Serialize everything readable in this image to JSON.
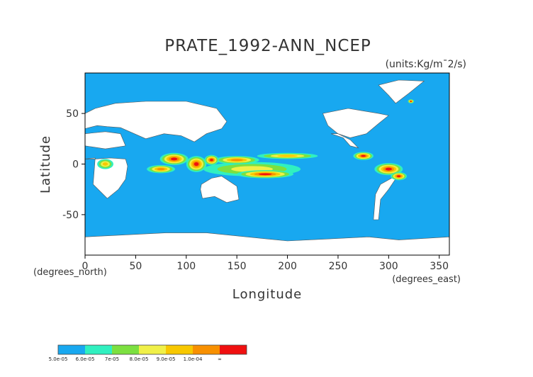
{
  "chart_data": {
    "type": "heatmap",
    "title": "PRATE_1992-ANN_NCEP",
    "units": "(units:Kg/m¯2/s)",
    "xlabel": "Longitude",
    "ylabel": "Latitude",
    "x_note": "(degrees_east)",
    "y_note": "(degrees_north)",
    "xlim": [
      0,
      360
    ],
    "ylim": [
      -90,
      90
    ],
    "x_ticks": [
      0,
      50,
      100,
      150,
      200,
      250,
      300,
      350
    ],
    "y_ticks": [
      50,
      0,
      -50
    ],
    "grid": false,
    "background_color": "#18a8f0",
    "colorbar": {
      "labels": [
        "5.0e-05",
        "6.0e-05",
        "7e-05",
        "8.0e-05",
        "9.0e-05",
        "1.0e-04",
        "∞"
      ],
      "colors": [
        "#18a8f0",
        "#30f0c0",
        "#7ce040",
        "#f0f048",
        "#f8c800",
        "#f89000",
        "#f01010"
      ]
    },
    "white_regions_lonlat": [
      [
        [
          0,
          35
        ],
        [
          12,
          38
        ],
        [
          22,
          37
        ],
        [
          35,
          36
        ],
        [
          60,
          25
        ],
        [
          78,
          30
        ],
        [
          95,
          28
        ],
        [
          108,
          22
        ],
        [
          120,
          30
        ],
        [
          135,
          35
        ],
        [
          140,
          42
        ],
        [
          130,
          55
        ],
        [
          100,
          62
        ],
        [
          60,
          62
        ],
        [
          30,
          60
        ],
        [
          10,
          55
        ],
        [
          0,
          50
        ]
      ],
      [
        [
          0,
          30
        ],
        [
          20,
          32
        ],
        [
          35,
          30
        ],
        [
          40,
          18
        ],
        [
          20,
          15
        ],
        [
          0,
          18
        ]
      ],
      [
        [
          -1,
          5
        ],
        [
          10,
          6
        ],
        [
          8,
          -20
        ],
        [
          22,
          -34
        ],
        [
          33,
          -25
        ],
        [
          40,
          -15
        ],
        [
          42,
          -2
        ],
        [
          40,
          5
        ],
        [
          25,
          6
        ],
        [
          10,
          5
        ]
      ],
      [
        [
          235,
          50
        ],
        [
          260,
          55
        ],
        [
          290,
          50
        ],
        [
          300,
          48
        ],
        [
          290,
          40
        ],
        [
          278,
          30
        ],
        [
          262,
          26
        ],
        [
          250,
          30
        ],
        [
          240,
          38
        ]
      ],
      [
        [
          243,
          30
        ],
        [
          255,
          26
        ],
        [
          262,
          18
        ],
        [
          270,
          16
        ],
        [
          262,
          24
        ],
        [
          250,
          30
        ]
      ],
      [
        [
          292,
          -20
        ],
        [
          310,
          -10
        ],
        [
          300,
          -25
        ],
        [
          292,
          -35
        ],
        [
          290,
          -55
        ],
        [
          285,
          -55
        ],
        [
          287,
          -30
        ]
      ],
      [
        [
          115,
          -20
        ],
        [
          125,
          -14
        ],
        [
          135,
          -12
        ],
        [
          150,
          -22
        ],
        [
          152,
          -35
        ],
        [
          140,
          -38
        ],
        [
          128,
          -32
        ],
        [
          116,
          -34
        ],
        [
          114,
          -25
        ]
      ],
      [
        [
          307,
          60
        ],
        [
          320,
          70
        ],
        [
          335,
          82
        ],
        [
          310,
          83
        ],
        [
          290,
          78
        ],
        [
          300,
          68
        ]
      ],
      [
        [
          0,
          -72
        ],
        [
          40,
          -70
        ],
        [
          80,
          -68
        ],
        [
          120,
          -68
        ],
        [
          160,
          -72
        ],
        [
          200,
          -76
        ],
        [
          240,
          -74
        ],
        [
          280,
          -72
        ],
        [
          310,
          -75
        ],
        [
          360,
          -72
        ],
        [
          360,
          -90
        ],
        [
          0,
          -90
        ]
      ]
    ],
    "high_precip_blobs": [
      {
        "lon": 165,
        "lat": -5,
        "rx": 48,
        "ry": 7,
        "level": 3
      },
      {
        "lon": 178,
        "lat": -10,
        "rx": 28,
        "ry": 4,
        "level": 6
      },
      {
        "lon": 150,
        "lat": 4,
        "rx": 22,
        "ry": 4,
        "level": 5
      },
      {
        "lon": 88,
        "lat": 5,
        "rx": 14,
        "ry": 6,
        "level": 6
      },
      {
        "lon": 110,
        "lat": 0,
        "rx": 10,
        "ry": 8,
        "level": 6
      },
      {
        "lon": 125,
        "lat": 4,
        "rx": 7,
        "ry": 5,
        "level": 6
      },
      {
        "lon": 75,
        "lat": -5,
        "rx": 14,
        "ry": 4,
        "level": 5
      },
      {
        "lon": 200,
        "lat": 8,
        "rx": 30,
        "ry": 3,
        "level": 4
      },
      {
        "lon": 275,
        "lat": 8,
        "rx": 10,
        "ry": 4,
        "level": 6
      },
      {
        "lon": 300,
        "lat": -5,
        "rx": 14,
        "ry": 6,
        "level": 6
      },
      {
        "lon": 310,
        "lat": -12,
        "rx": 8,
        "ry": 4,
        "level": 6
      },
      {
        "lon": 20,
        "lat": 0,
        "rx": 8,
        "ry": 5,
        "level": 4
      },
      {
        "lon": 322,
        "lat": 62,
        "rx": 3,
        "ry": 2,
        "level": 6
      }
    ]
  }
}
